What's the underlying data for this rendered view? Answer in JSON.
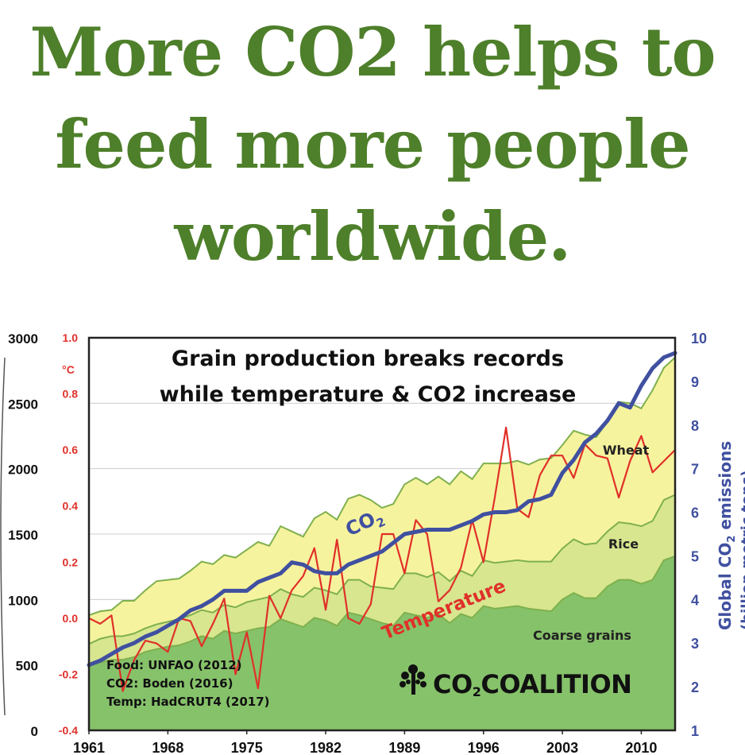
{
  "headline": {
    "line1": "More CO2 helps to",
    "line2": "feed more people",
    "line3": "worldwide."
  },
  "colors": {
    "headline": "#4e7f2a",
    "coarse_grains": "#86c26a",
    "rice": "#d7e68f",
    "wheat": "#f6f39e",
    "boundary": "#7fb04d",
    "co2": "#4050a0",
    "temperature": "#e0302a",
    "grid": "#cccccc"
  },
  "chart_data": {
    "type": "area",
    "title_line1": "Grain production breaks records",
    "title_line2": "while temperature & CO2 increase",
    "x": [
      1961,
      1962,
      1963,
      1964,
      1965,
      1966,
      1967,
      1968,
      1969,
      1970,
      1971,
      1972,
      1973,
      1974,
      1975,
      1976,
      1977,
      1978,
      1979,
      1980,
      1981,
      1982,
      1983,
      1984,
      1985,
      1986,
      1987,
      1988,
      1989,
      1990,
      1991,
      1992,
      1993,
      1994,
      1995,
      1996,
      1997,
      1998,
      1999,
      2000,
      2001,
      2002,
      2003,
      2004,
      2005,
      2006,
      2007,
      2008,
      2009,
      2010,
      2011,
      2012,
      2013
    ],
    "x_ticks": [
      "1961",
      "1968",
      "1975",
      "1982",
      "1989",
      "1996",
      "2003",
      "2010"
    ],
    "left_axis": {
      "ticks": [
        "0",
        "500",
        "1000",
        "1500",
        "2000",
        "2500",
        "3000"
      ],
      "ylim": [
        0,
        3000
      ]
    },
    "temp_axis": {
      "ticks": [
        "-0.4",
        "-0.2",
        "0.0",
        "0.2",
        "0.4",
        "0.6",
        "0.8",
        "1.0"
      ],
      "unit": "°C",
      "ylim": [
        -0.4,
        1.0
      ]
    },
    "right_axis": {
      "ticks": [
        "1",
        "2",
        "3",
        "4",
        "5",
        "6",
        "7",
        "8",
        "9",
        "10"
      ],
      "label_main": "Global CO",
      "label_sub": "2",
      "label_tail": " emissions",
      "label_units": "(billion metric tons)",
      "ylim": [
        1,
        10
      ]
    },
    "series": [
      {
        "name": "Coarse grains",
        "label": "Coarse grains",
        "values": [
          490,
          520,
          540,
          540,
          560,
          600,
          620,
          640,
          650,
          680,
          720,
          700,
          760,
          740,
          760,
          780,
          790,
          850,
          820,
          790,
          860,
          840,
          800,
          900,
          880,
          850,
          820,
          800,
          900,
          880,
          860,
          890,
          820,
          890,
          860,
          950,
          930,
          940,
          950,
          930,
          920,
          910,
          1000,
          1050,
          1010,
          1010,
          1100,
          1150,
          1150,
          1120,
          1150,
          1300,
          1330
        ]
      },
      {
        "name": "Coarse grains + Rice",
        "label": "Rice",
        "values": [
          660,
          700,
          720,
          720,
          740,
          780,
          810,
          830,
          850,
          880,
          920,
          900,
          960,
          940,
          980,
          1000,
          1020,
          1080,
          1040,
          1020,
          1090,
          1070,
          1040,
          1150,
          1150,
          1100,
          1090,
          1080,
          1200,
          1200,
          1170,
          1210,
          1140,
          1220,
          1180,
          1300,
          1280,
          1290,
          1300,
          1290,
          1290,
          1290,
          1390,
          1460,
          1420,
          1430,
          1520,
          1590,
          1580,
          1560,
          1600,
          1760,
          1800
        ]
      },
      {
        "name": "Total grain",
        "label": "Wheat",
        "values": [
          880,
          910,
          920,
          990,
          990,
          1070,
          1140,
          1150,
          1160,
          1220,
          1290,
          1270,
          1340,
          1320,
          1380,
          1440,
          1410,
          1560,
          1520,
          1480,
          1620,
          1670,
          1610,
          1770,
          1800,
          1760,
          1700,
          1730,
          1880,
          1930,
          1880,
          1940,
          1880,
          1980,
          1920,
          2040,
          2040,
          2040,
          2060,
          2030,
          2070,
          2080,
          2180,
          2290,
          2260,
          2240,
          2360,
          2510,
          2500,
          2460,
          2600,
          2770,
          2850
        ]
      }
    ],
    "co2": {
      "label_main": "CO",
      "label_sub": "2",
      "values": [
        2.5,
        2.6,
        2.75,
        2.9,
        3.0,
        3.15,
        3.25,
        3.4,
        3.55,
        3.75,
        3.85,
        4.0,
        4.2,
        4.2,
        4.2,
        4.4,
        4.5,
        4.6,
        4.85,
        4.8,
        4.65,
        4.6,
        4.6,
        4.8,
        4.9,
        5.0,
        5.1,
        5.3,
        5.5,
        5.55,
        5.6,
        5.6,
        5.6,
        5.7,
        5.8,
        5.95,
        6.0,
        6.0,
        6.05,
        6.25,
        6.3,
        6.4,
        6.9,
        7.2,
        7.6,
        7.8,
        8.1,
        8.5,
        8.4,
        8.9,
        9.3,
        9.55,
        9.65
      ]
    },
    "temperature": {
      "label": "Temperature",
      "values": [
        0.0,
        -0.02,
        0.01,
        -0.26,
        -0.15,
        -0.08,
        -0.09,
        -0.12,
        0.0,
        -0.01,
        -0.1,
        -0.02,
        0.07,
        -0.2,
        -0.05,
        -0.25,
        0.08,
        0.0,
        0.1,
        0.15,
        0.25,
        0.03,
        0.28,
        0.0,
        -0.02,
        0.05,
        0.3,
        0.3,
        0.16,
        0.35,
        0.3,
        0.06,
        0.1,
        0.18,
        0.35,
        0.2,
        0.43,
        0.68,
        0.39,
        0.36,
        0.51,
        0.58,
        0.58,
        0.5,
        0.62,
        0.58,
        0.57,
        0.43,
        0.56,
        0.65,
        0.52,
        0.56,
        0.6
      ]
    },
    "sources": [
      "Food: UNFAO (2012)",
      "CO2: Boden (2016)",
      "Temp: HadCRUT4 (2017)"
    ],
    "logo": {
      "main": "CO",
      "sub": "2",
      "tail": "COALITION"
    }
  }
}
